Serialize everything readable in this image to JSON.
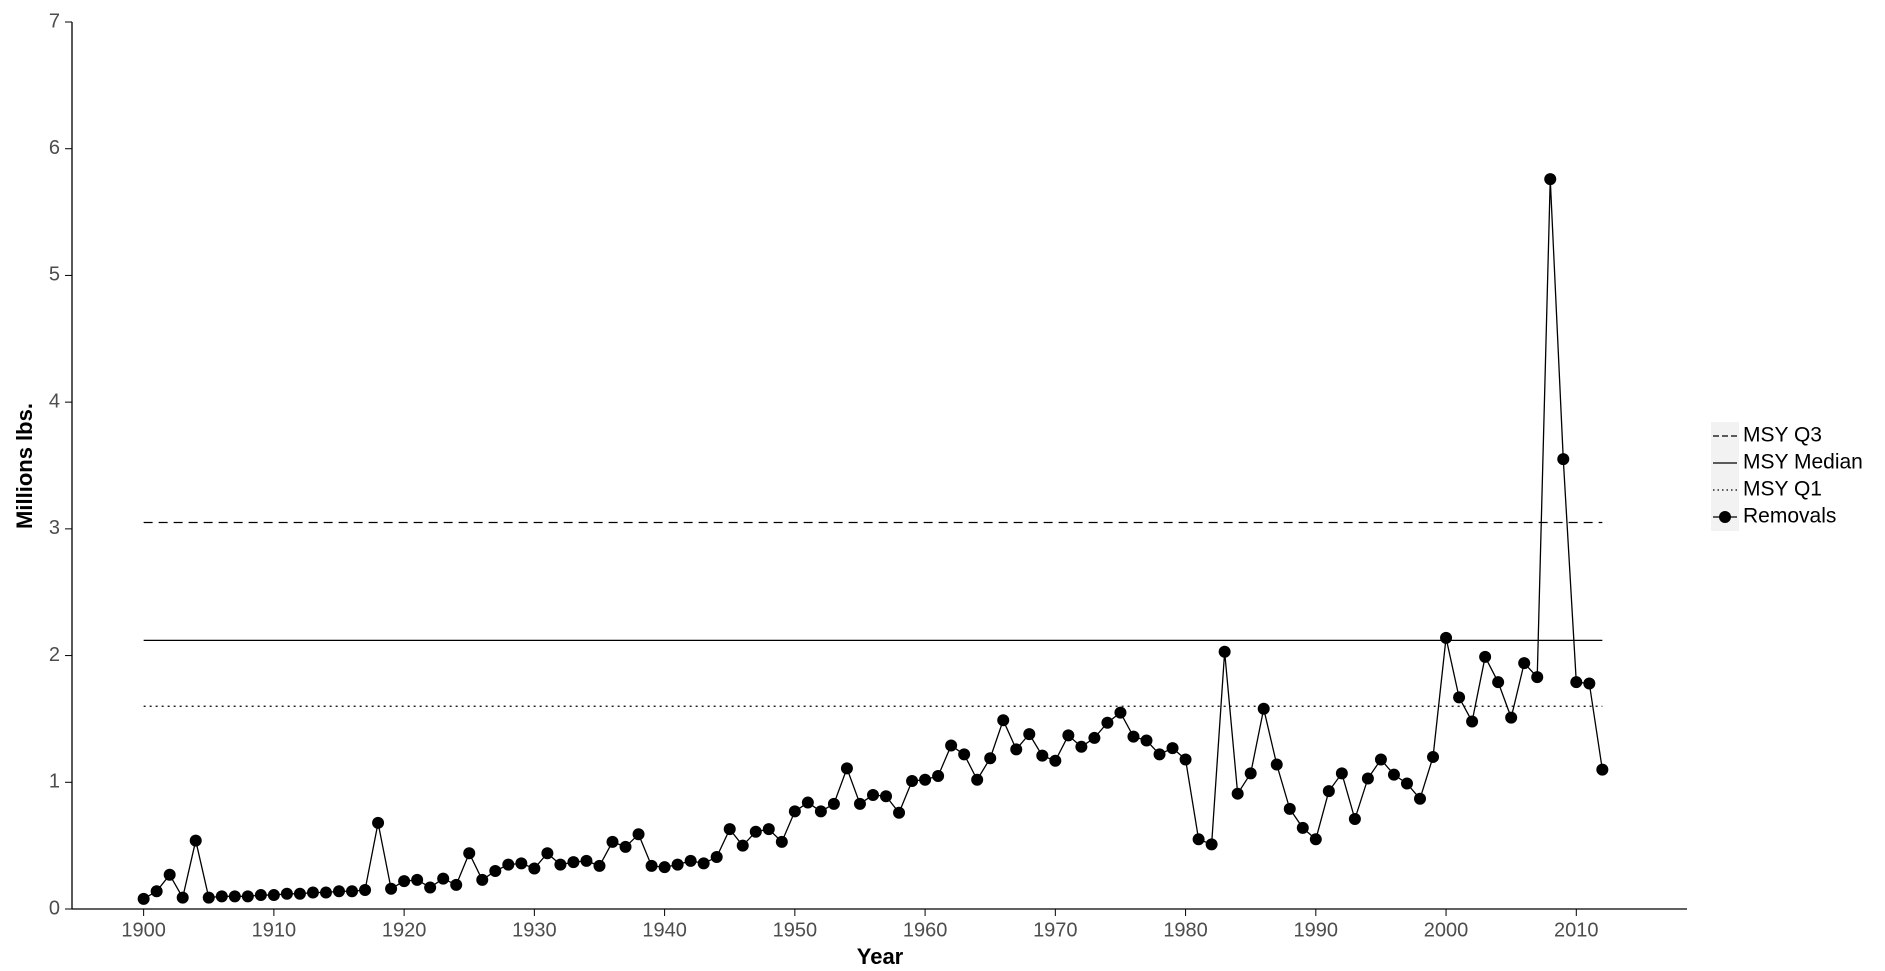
{
  "chart_data": {
    "type": "line",
    "x_label": "Year",
    "y_label": "Millions lbs.",
    "x": [
      1900,
      1901,
      1902,
      1903,
      1904,
      1905,
      1906,
      1907,
      1908,
      1909,
      1910,
      1911,
      1912,
      1913,
      1914,
      1915,
      1916,
      1917,
      1918,
      1919,
      1920,
      1921,
      1922,
      1923,
      1924,
      1925,
      1926,
      1927,
      1928,
      1929,
      1930,
      1931,
      1932,
      1933,
      1934,
      1935,
      1936,
      1937,
      1938,
      1939,
      1940,
      1941,
      1942,
      1943,
      1944,
      1945,
      1946,
      1947,
      1948,
      1949,
      1950,
      1951,
      1952,
      1953,
      1954,
      1955,
      1956,
      1957,
      1958,
      1959,
      1960,
      1961,
      1962,
      1963,
      1964,
      1965,
      1966,
      1967,
      1968,
      1969,
      1970,
      1971,
      1972,
      1973,
      1974,
      1975,
      1976,
      1977,
      1978,
      1979,
      1980,
      1981,
      1982,
      1983,
      1984,
      1985,
      1986,
      1987,
      1988,
      1989,
      1990,
      1991,
      1992,
      1993,
      1994,
      1995,
      1996,
      1997,
      1998,
      1999,
      2000,
      2001,
      2002,
      2003,
      2004,
      2005,
      2006,
      2007,
      2008,
      2009,
      2010,
      2011,
      2012
    ],
    "series": [
      {
        "name": "Removals",
        "color": "#000000",
        "values": [
          0.08,
          0.14,
          0.27,
          0.09,
          0.54,
          0.09,
          0.1,
          0.1,
          0.1,
          0.11,
          0.11,
          0.12,
          0.12,
          0.13,
          0.13,
          0.14,
          0.14,
          0.15,
          0.68,
          0.16,
          0.22,
          0.23,
          0.17,
          0.24,
          0.19,
          0.44,
          0.23,
          0.3,
          0.35,
          0.36,
          0.32,
          0.44,
          0.35,
          0.37,
          0.38,
          0.34,
          0.53,
          0.49,
          0.59,
          0.34,
          0.33,
          0.35,
          0.38,
          0.36,
          0.41,
          0.63,
          0.5,
          0.61,
          0.63,
          0.53,
          0.77,
          0.84,
          0.77,
          0.83,
          1.11,
          0.83,
          0.9,
          0.89,
          0.76,
          1.01,
          1.02,
          1.05,
          1.29,
          1.22,
          1.02,
          1.19,
          1.49,
          1.26,
          1.38,
          1.21,
          1.17,
          1.37,
          1.28,
          1.35,
          1.47,
          1.55,
          1.36,
          1.33,
          1.22,
          1.27,
          1.18,
          0.55,
          0.51,
          2.03,
          0.91,
          1.07,
          1.58,
          1.14,
          0.79,
          0.64,
          0.55,
          0.93,
          1.07,
          0.71,
          1.03,
          1.18,
          1.06,
          0.99,
          0.87,
          1.2,
          2.14,
          1.67,
          1.48,
          1.99,
          1.79,
          1.51,
          1.94,
          1.83,
          5.76,
          3.55,
          1.79,
          1.78,
          1.1
        ]
      }
    ],
    "reference_lines": [
      {
        "name": "MSY Q3",
        "value": 3.05,
        "style": "dashed"
      },
      {
        "name": "MSY Median",
        "value": 2.12,
        "style": "solid"
      },
      {
        "name": "MSY Q1",
        "value": 1.6,
        "style": "dotted"
      }
    ],
    "reference_xrange": [
      1900,
      2012
    ],
    "xlim": [
      1894.5,
      2018.5
    ],
    "xticks": [
      1900,
      1910,
      1920,
      1930,
      1940,
      1950,
      1960,
      1970,
      1980,
      1990,
      2000,
      2010
    ],
    "ylim": [
      0,
      7
    ],
    "yticks": [
      0,
      1,
      2,
      3,
      4,
      5,
      6,
      7
    ],
    "grid": false,
    "legend": "right"
  }
}
